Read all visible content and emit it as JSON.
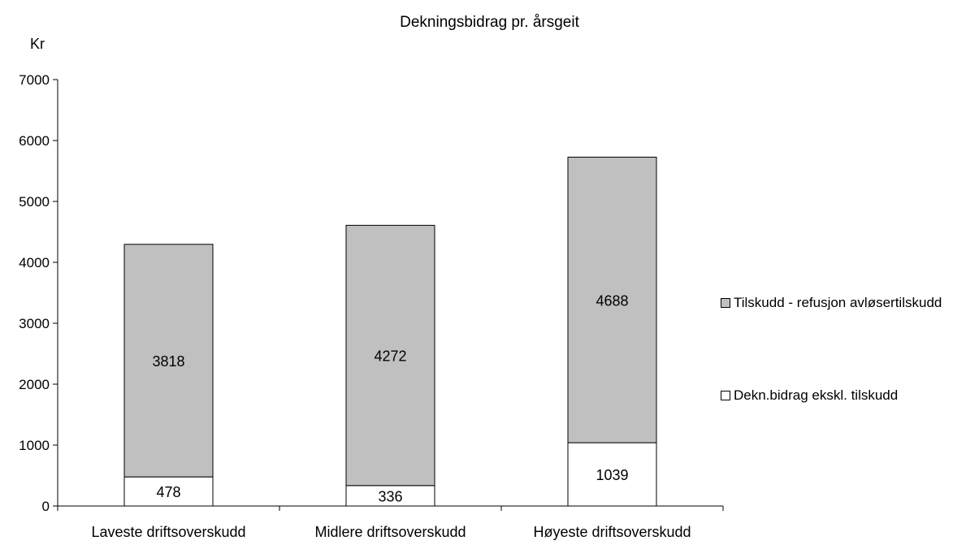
{
  "chart_data": {
    "type": "bar",
    "stacked": true,
    "title": "Dekningsbidrag pr. årsgeit",
    "ylabel": "Kr",
    "xlabel": "",
    "categories": [
      "Laveste driftsoverskudd",
      "Midlere driftsoverskudd",
      "Høyeste driftsoverskudd"
    ],
    "series": [
      {
        "name": "Dekn.bidrag ekskl. tilskudd",
        "values": [
          478,
          336,
          1039
        ],
        "color": "#ffffff"
      },
      {
        "name": "Tilskudd - refusjon avløsertilskudd",
        "values": [
          3818,
          4272,
          4688
        ],
        "color": "#c0c0c0"
      }
    ],
    "ylim": [
      0,
      7000
    ],
    "yticks": [
      0,
      1000,
      2000,
      3000,
      4000,
      5000,
      6000,
      7000
    ],
    "legend_entries": [
      "Tilskudd - refusjon avløsertilskudd",
      "Dekn.bidrag ekskl. tilskudd"
    ],
    "legend_position": "right",
    "grid": false
  }
}
